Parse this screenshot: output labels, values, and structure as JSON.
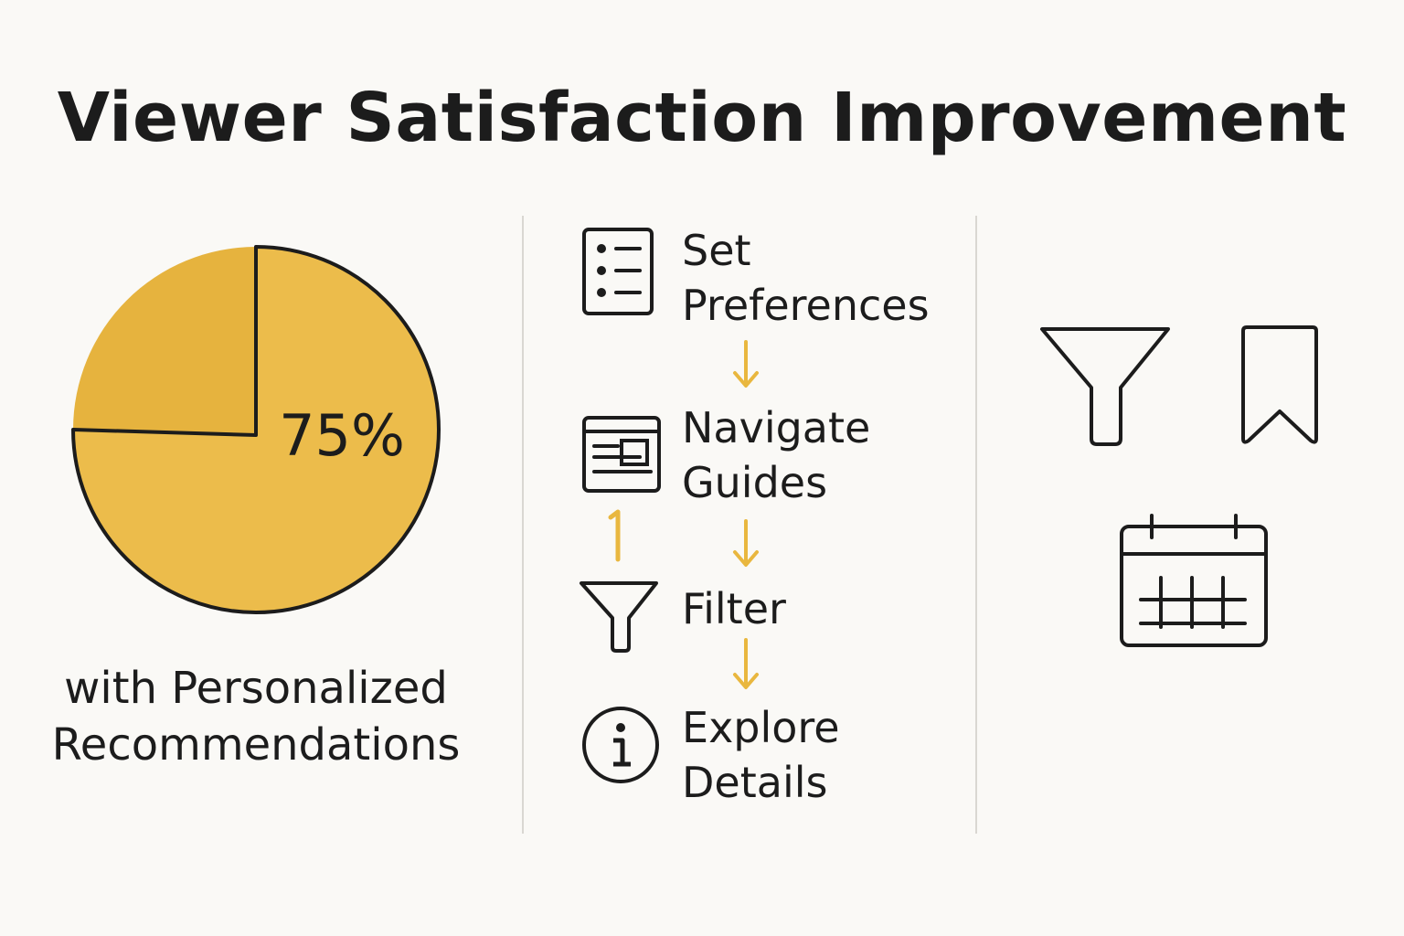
{
  "title": "Viewer Satisfaction Improvement",
  "chart_data": {
    "type": "pie",
    "values": [
      75
    ],
    "data_labels": [
      "75%"
    ],
    "caption_lines": [
      "with Personalized",
      "Recommendations"
    ]
  },
  "colors": {
    "accent": "#e9b73f",
    "pie_main": "#ecbc4b",
    "pie_rest": "#e6b33e",
    "stroke": "#1c1c1c",
    "divider": "#d9d7d2"
  },
  "steps": [
    {
      "icon": "list-icon",
      "lines": [
        "Set",
        "Preferences"
      ]
    },
    {
      "icon": "guide-icon",
      "lines": [
        "Navigate",
        "Guides"
      ]
    },
    {
      "icon": "filter-icon",
      "lines": [
        "Filter"
      ]
    },
    {
      "icon": "info-icon",
      "lines": [
        "Explore",
        "Details"
      ]
    }
  ],
  "side_icons": [
    "filter-icon",
    "bookmark-icon",
    "calendar-icon"
  ]
}
